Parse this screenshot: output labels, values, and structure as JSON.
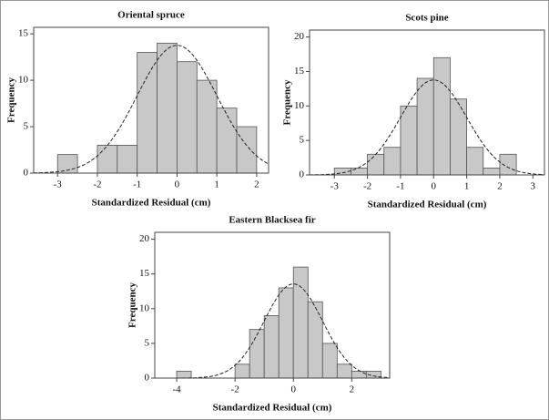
{
  "chart_data": [
    {
      "type": "histogram",
      "title": "Oriental spruce",
      "xlabel": "Standardized Residual (cm)",
      "ylabel": "Frequency",
      "bins": [
        -3,
        -2.5,
        -2,
        -1.5,
        -1,
        -0.5,
        0,
        0.5,
        1,
        1.5,
        2
      ],
      "values": [
        2,
        0,
        3,
        3,
        13,
        14,
        12,
        10,
        7,
        5
      ],
      "color": "#c8c8c8",
      "curve": {
        "mean": 0,
        "sd": 1
      },
      "xlim": [
        -3.6,
        2.3
      ],
      "xticks": [
        -3,
        -2,
        -1,
        0,
        1,
        2
      ],
      "ylim": [
        0,
        15.7
      ],
      "yticks": [
        0,
        5,
        10,
        15
      ]
    },
    {
      "type": "histogram",
      "title": "Scots pine",
      "xlabel": "Standardized Residual (cm)",
      "ylabel": "Frequency",
      "bins": [
        -3,
        -2.5,
        -2,
        -1.5,
        -1,
        -0.5,
        0,
        0.5,
        1,
        1.5,
        2,
        2.5
      ],
      "values": [
        1,
        1,
        3,
        4,
        10,
        14,
        17,
        11,
        4,
        1,
        3
      ],
      "color": "#c8c8c8",
      "curve": {
        "mean": 0,
        "sd": 1
      },
      "xlim": [
        -3.75,
        3.35
      ],
      "xticks": [
        -3,
        -2,
        -1,
        0,
        1,
        2,
        3
      ],
      "ylim": [
        0,
        21
      ],
      "yticks": [
        0,
        5,
        10,
        15,
        20
      ]
    },
    {
      "type": "histogram",
      "title": "Eastern Blacksea fir",
      "xlabel": "Standardized Residual (cm)",
      "ylabel": "Frequency",
      "bins": [
        -4,
        -3.5,
        -3,
        -2.5,
        -2,
        -1.5,
        -1,
        -0.5,
        0,
        0.5,
        1,
        1.5,
        2,
        2.5,
        3
      ],
      "values": [
        1,
        0,
        0,
        0,
        2,
        7,
        9,
        13,
        16,
        11,
        5,
        2,
        1,
        1
      ],
      "color": "#c8c8c8",
      "curve": {
        "mean": 0,
        "sd": 1
      },
      "xlim": [
        -4.75,
        3.3
      ],
      "xticks": [
        -4,
        -2,
        0,
        2
      ],
      "ylim": [
        0,
        21
      ],
      "yticks": [
        0,
        5,
        10,
        15,
        20
      ]
    }
  ]
}
